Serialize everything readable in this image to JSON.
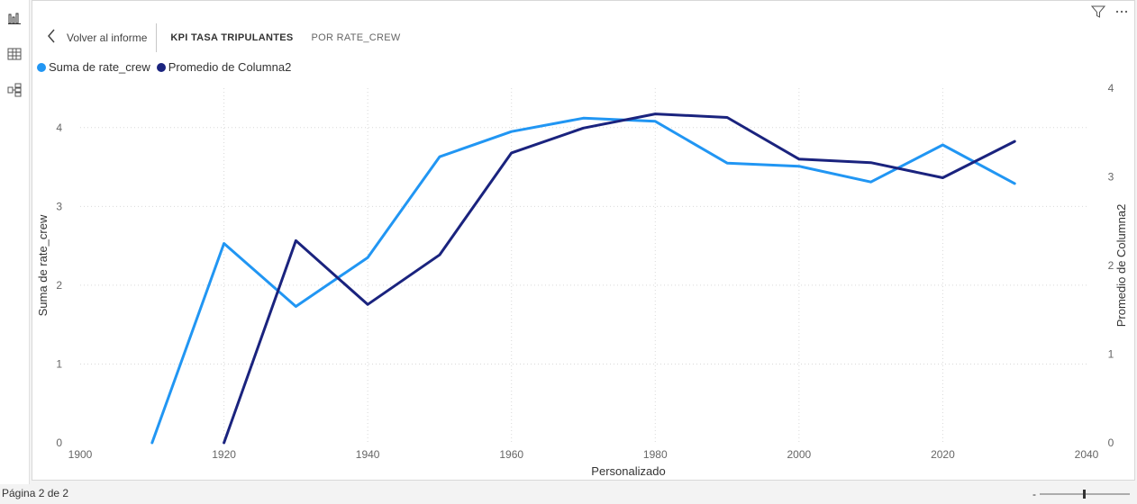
{
  "toolbar": {
    "back_label": "Volver al informe",
    "title": "KPI TASA TRIPULANTES",
    "subtitle": "POR RATE_CREW"
  },
  "status": {
    "page_indicator": "Página 2 de 2",
    "zoom_minus": "-"
  },
  "icons": {
    "visual": "bar-chart-icon",
    "table": "table-icon",
    "model": "model-icon",
    "filter": "filter-icon",
    "more": "more-options-icon"
  },
  "colors": {
    "series1": "#2196f3",
    "series2": "#1a237e"
  },
  "chart_data": {
    "type": "line",
    "xlabel": "Personalizado",
    "ylabel_left": "Suma de rate_crew",
    "ylabel_right": "Promedio de Columna2",
    "xlim": [
      1900,
      2040
    ],
    "ylim_left": [
      0,
      4.5
    ],
    "ylim_right": [
      0,
      4
    ],
    "x_ticks": [
      "1900",
      "1920",
      "1940",
      "1960",
      "1980",
      "2000",
      "2020",
      "2040"
    ],
    "y_ticks_left": [
      "0",
      "1",
      "2",
      "3",
      "4"
    ],
    "y_ticks_right": [
      "0",
      "1",
      "2",
      "3",
      "4"
    ],
    "grid": true,
    "legend_position": "top-left",
    "series": [
      {
        "name": "Suma de rate_crew",
        "axis": "left",
        "color": "#2196f3",
        "x": [
          1910,
          1920,
          1930,
          1940,
          1950,
          1960,
          1970,
          1980,
          1990,
          2000,
          2010,
          2020,
          2030
        ],
        "values": [
          0,
          2.53,
          1.73,
          2.35,
          3.63,
          3.95,
          4.12,
          4.08,
          3.55,
          3.51,
          3.31,
          3.78,
          3.29
        ]
      },
      {
        "name": "Promedio de Columna2",
        "axis": "right",
        "color": "#1a237e",
        "x": [
          1920,
          1930,
          1940,
          1950,
          1960,
          1970,
          1980,
          1990,
          2000,
          2010,
          2020,
          2030
        ],
        "values": [
          0,
          2.28,
          1.56,
          2.12,
          3.27,
          3.55,
          3.71,
          3.67,
          3.2,
          3.16,
          2.99,
          3.4
        ]
      }
    ]
  }
}
